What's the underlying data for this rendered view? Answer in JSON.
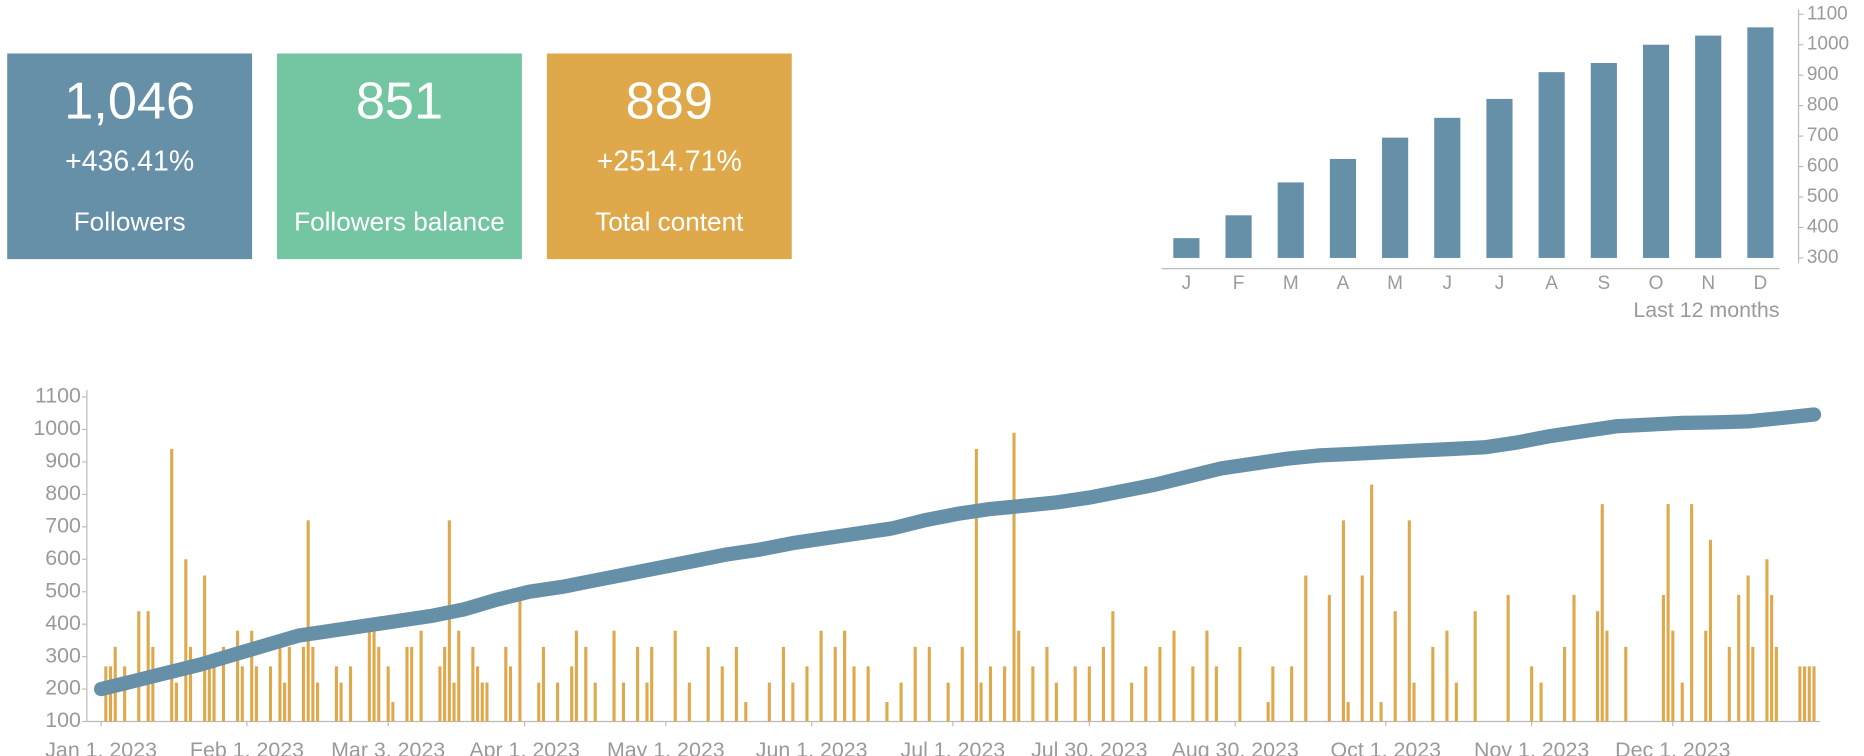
{
  "cards": [
    {
      "value": "1,046",
      "change": "+436.41%",
      "label": "Followers",
      "color": "#668fa8"
    },
    {
      "value": "851",
      "label": "Followers balance",
      "color": "#73c6a1"
    },
    {
      "value": "889",
      "change": "+2514.71%",
      "label": "Total content",
      "color": "#dfa84b"
    }
  ],
  "chart_data": [
    {
      "type": "bar",
      "caption": "Last 12 months",
      "categories": [
        "J",
        "F",
        "M",
        "A",
        "M",
        "J",
        "J",
        "A",
        "S",
        "O",
        "N",
        "D"
      ],
      "values": [
        365,
        440,
        548,
        625,
        695,
        760,
        822,
        910,
        940,
        1000,
        1030,
        1057
      ],
      "color": "#668fa8",
      "ylim": [
        300,
        1100
      ],
      "yticks": [
        300,
        400,
        500,
        600,
        700,
        800,
        900,
        1000,
        1100
      ],
      "y_axis_side": "right"
    },
    {
      "type": "combo",
      "xlim": [
        "2023-01-01",
        "2023-12-31"
      ],
      "xticks": [
        {
          "value": "2023-01-01",
          "label": "Jan 1, 2023"
        },
        {
          "value": "2023-02-01",
          "label": "Feb 1, 2023"
        },
        {
          "value": "2023-03-03",
          "label": "Mar 3, 2023"
        },
        {
          "value": "2023-04-01",
          "label": "Apr 1, 2023"
        },
        {
          "value": "2023-05-01",
          "label": "May 1, 2023"
        },
        {
          "value": "2023-06-01",
          "label": "Jun 1, 2023"
        },
        {
          "value": "2023-07-01",
          "label": "Jul 1, 2023"
        },
        {
          "value": "2023-07-30",
          "label": "Jul 30, 2023"
        },
        {
          "value": "2023-08-30",
          "label": "Aug 30, 2023"
        },
        {
          "value": "2023-10-01",
          "label": "Oct 1, 2023"
        },
        {
          "value": "2023-11-01",
          "label": "Nov 1, 2023"
        },
        {
          "value": "2023-12-01",
          "label": "Dec 1, 2023"
        }
      ],
      "ylim": [
        100,
        1100
      ],
      "yticks": [
        100,
        200,
        300,
        400,
        500,
        600,
        700,
        800,
        900,
        1000,
        1100
      ],
      "series": [
        {
          "type": "bar",
          "color": "#dfa84b",
          "x": [
            "2023-01-02",
            "2023-01-03",
            "2023-01-04",
            "2023-01-06",
            "2023-01-09",
            "2023-01-11",
            "2023-01-12",
            "2023-01-16",
            "2023-01-17",
            "2023-01-19",
            "2023-01-20",
            "2023-01-23",
            "2023-01-24",
            "2023-01-25",
            "2023-01-27",
            "2023-01-30",
            "2023-01-31",
            "2023-02-02",
            "2023-02-03",
            "2023-02-06",
            "2023-02-08",
            "2023-02-09",
            "2023-02-10",
            "2023-02-13",
            "2023-02-14",
            "2023-02-15",
            "2023-02-16",
            "2023-02-20",
            "2023-02-21",
            "2023-02-23",
            "2023-02-27",
            "2023-02-28",
            "2023-03-01",
            "2023-03-03",
            "2023-03-04",
            "2023-03-07",
            "2023-03-08",
            "2023-03-10",
            "2023-03-14",
            "2023-03-15",
            "2023-03-16",
            "2023-03-17",
            "2023-03-18",
            "2023-03-21",
            "2023-03-22",
            "2023-03-23",
            "2023-03-24",
            "2023-03-28",
            "2023-03-29",
            "2023-03-31",
            "2023-04-04",
            "2023-04-05",
            "2023-04-08",
            "2023-04-11",
            "2023-04-12",
            "2023-04-14",
            "2023-04-16",
            "2023-04-20",
            "2023-04-22",
            "2023-04-25",
            "2023-04-27",
            "2023-04-28",
            "2023-05-03",
            "2023-05-06",
            "2023-05-10",
            "2023-05-13",
            "2023-05-16",
            "2023-05-18",
            "2023-05-23",
            "2023-05-26",
            "2023-05-28",
            "2023-05-31",
            "2023-06-03",
            "2023-06-06",
            "2023-06-08",
            "2023-06-10",
            "2023-06-13",
            "2023-06-17",
            "2023-06-20",
            "2023-06-23",
            "2023-06-26",
            "2023-06-30",
            "2023-07-03",
            "2023-07-06",
            "2023-07-07",
            "2023-07-09",
            "2023-07-12",
            "2023-07-14",
            "2023-07-15",
            "2023-07-18",
            "2023-07-21",
            "2023-07-23",
            "2023-07-27",
            "2023-07-30",
            "2023-08-02",
            "2023-08-04",
            "2023-08-08",
            "2023-08-11",
            "2023-08-14",
            "2023-08-17",
            "2023-08-21",
            "2023-08-24",
            "2023-08-26",
            "2023-08-31",
            "2023-09-06",
            "2023-09-07",
            "2023-09-11",
            "2023-09-14",
            "2023-09-19",
            "2023-09-22",
            "2023-09-23",
            "2023-09-26",
            "2023-09-28",
            "2023-09-30",
            "2023-10-03",
            "2023-10-06",
            "2023-10-07",
            "2023-10-11",
            "2023-10-14",
            "2023-10-16",
            "2023-10-20",
            "2023-10-27",
            "2023-11-01",
            "2023-11-03",
            "2023-11-08",
            "2023-11-10",
            "2023-11-15",
            "2023-11-16",
            "2023-11-17",
            "2023-11-21",
            "2023-11-29",
            "2023-11-30",
            "2023-12-01",
            "2023-12-03",
            "2023-12-05",
            "2023-12-08",
            "2023-12-09",
            "2023-12-13",
            "2023-12-15",
            "2023-12-17",
            "2023-12-18",
            "2023-12-21",
            "2023-12-22",
            "2023-12-23",
            "2023-12-28",
            "2023-12-29",
            "2023-12-30",
            "2023-12-31"
          ],
          "values": [
            270,
            270,
            330,
            270,
            440,
            440,
            330,
            940,
            220,
            600,
            330,
            550,
            270,
            270,
            330,
            380,
            270,
            380,
            270,
            270,
            330,
            220,
            330,
            330,
            720,
            330,
            220,
            270,
            220,
            270,
            380,
            380,
            330,
            270,
            160,
            330,
            330,
            380,
            270,
            330,
            720,
            220,
            380,
            330,
            270,
            220,
            220,
            330,
            270,
            490,
            220,
            330,
            220,
            270,
            380,
            330,
            220,
            380,
            220,
            330,
            220,
            330,
            380,
            220,
            330,
            270,
            330,
            160,
            220,
            330,
            220,
            270,
            380,
            330,
            380,
            270,
            270,
            160,
            220,
            330,
            330,
            220,
            330,
            940,
            220,
            270,
            270,
            990,
            380,
            270,
            330,
            220,
            270,
            270,
            330,
            440,
            220,
            270,
            330,
            380,
            270,
            380,
            270,
            330,
            160,
            270,
            270,
            550,
            490,
            720,
            160,
            550,
            830,
            160,
            440,
            720,
            220,
            330,
            380,
            220,
            440,
            490,
            270,
            220,
            330,
            490,
            440,
            770,
            380,
            330,
            490,
            770,
            380,
            220,
            770,
            380,
            660,
            330,
            490,
            550,
            330,
            600,
            490,
            330,
            270,
            270,
            270,
            270
          ]
        },
        {
          "type": "line",
          "color": "#668fa8",
          "x": [
            "2023-01-01",
            "2023-01-08",
            "2023-01-15",
            "2023-01-22",
            "2023-01-29",
            "2023-02-05",
            "2023-02-12",
            "2023-02-19",
            "2023-02-26",
            "2023-03-05",
            "2023-03-12",
            "2023-03-19",
            "2023-03-26",
            "2023-04-02",
            "2023-04-09",
            "2023-04-16",
            "2023-04-23",
            "2023-04-30",
            "2023-05-07",
            "2023-05-14",
            "2023-05-21",
            "2023-05-28",
            "2023-06-04",
            "2023-06-11",
            "2023-06-18",
            "2023-06-25",
            "2023-07-02",
            "2023-07-09",
            "2023-07-16",
            "2023-07-23",
            "2023-07-30",
            "2023-08-06",
            "2023-08-13",
            "2023-08-20",
            "2023-08-27",
            "2023-09-03",
            "2023-09-10",
            "2023-09-17",
            "2023-09-24",
            "2023-10-01",
            "2023-10-08",
            "2023-10-15",
            "2023-10-22",
            "2023-10-29",
            "2023-11-05",
            "2023-11-12",
            "2023-11-19",
            "2023-11-26",
            "2023-12-03",
            "2023-12-10",
            "2023-12-17",
            "2023-12-24",
            "2023-12-31"
          ],
          "values": [
            200,
            225,
            250,
            275,
            305,
            335,
            365,
            380,
            395,
            410,
            425,
            445,
            475,
            500,
            515,
            535,
            555,
            575,
            595,
            615,
            630,
            650,
            665,
            680,
            695,
            720,
            740,
            755,
            765,
            775,
            790,
            810,
            830,
            855,
            880,
            895,
            910,
            920,
            925,
            930,
            935,
            940,
            945,
            960,
            980,
            995,
            1010,
            1015,
            1020,
            1022,
            1025,
            1035,
            1046
          ]
        }
      ]
    }
  ]
}
